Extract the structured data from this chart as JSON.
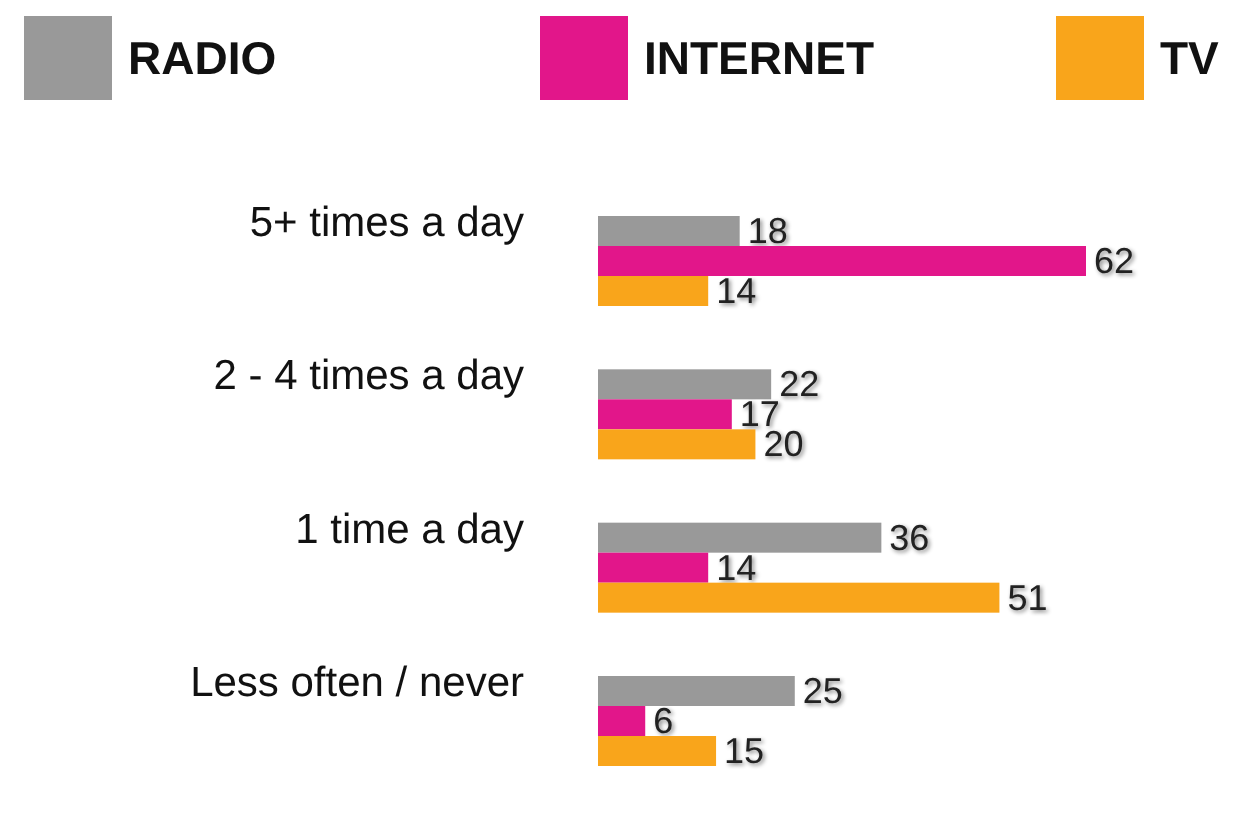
{
  "chart_data": {
    "type": "bar",
    "orientation": "horizontal",
    "categories": [
      "5+ times a day",
      "2 - 4 times a day",
      "1 time a day",
      "Less often / never"
    ],
    "series": [
      {
        "name": "RADIO",
        "color": "#999999",
        "values": [
          18,
          22,
          36,
          25
        ]
      },
      {
        "name": "INTERNET",
        "color": "#e2168a",
        "values": [
          62,
          17,
          14,
          6
        ]
      },
      {
        "name": "TV",
        "color": "#f9a51b",
        "values": [
          14,
          20,
          51,
          15
        ]
      }
    ],
    "data_labels": true,
    "legend": "top"
  }
}
